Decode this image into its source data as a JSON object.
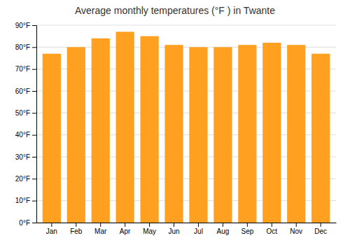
{
  "chart_data": {
    "type": "bar",
    "title": "Average monthly temperatures (°F ) in Twante",
    "categories": [
      "Jan",
      "Feb",
      "Mar",
      "Apr",
      "May",
      "Jun",
      "Jul",
      "Aug",
      "Sep",
      "Oct",
      "Nov",
      "Dec"
    ],
    "values": [
      77,
      80,
      84,
      87,
      85,
      81,
      80,
      80,
      81,
      82,
      81,
      77
    ],
    "color": "#FFA020",
    "ylim": [
      0,
      90
    ],
    "yticks": [
      {
        "value": 0,
        "label": "0°F"
      },
      {
        "value": 10,
        "label": "10°F"
      },
      {
        "value": 20,
        "label": "20°F"
      },
      {
        "value": 30,
        "label": "30°F"
      },
      {
        "value": 40,
        "label": "40°F"
      },
      {
        "value": 50,
        "label": "50°F"
      },
      {
        "value": 60,
        "label": "60°F"
      },
      {
        "value": 70,
        "label": "70°F"
      },
      {
        "value": 80,
        "label": "80°F"
      },
      {
        "value": 90,
        "label": "90°F"
      }
    ],
    "grid": true
  }
}
